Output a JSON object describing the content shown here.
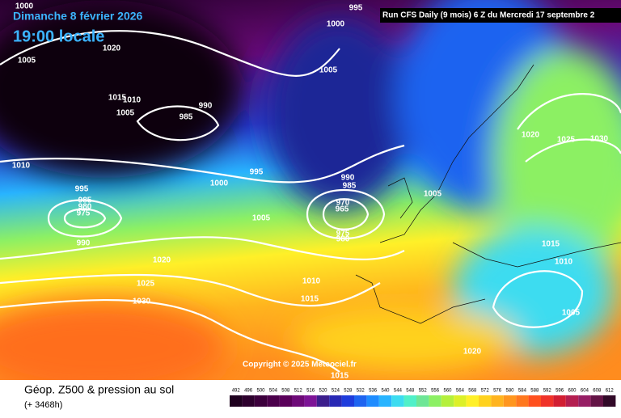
{
  "header": {
    "date": "Dimanche 8 février 2026",
    "time": "19:00 locale",
    "run": "Run CFS Daily (9 mois) 6 Z du Mercredi 17 septembre 2",
    "copyright": "Copyright © 2025 Meteociel.fr"
  },
  "footer": {
    "title": "Géop. Z500 & pression au sol",
    "lead": "(+ 3468h)"
  },
  "isobars": [
    1000,
    995,
    1000,
    1020,
    1005,
    1005,
    1015,
    1010,
    990,
    1005,
    985,
    1020,
    1025,
    1030,
    1010,
    995,
    1000,
    990,
    985,
    995,
    985,
    980,
    975,
    970,
    965,
    975,
    980,
    1005,
    1005,
    990,
    1015,
    1010,
    1020,
    1025,
    1010,
    1030,
    1015,
    1005,
    1020,
    1015
  ],
  "scale": {
    "labels": [
      492,
      496,
      500,
      504,
      508,
      512,
      516,
      520,
      524,
      528,
      532,
      536,
      540,
      544,
      548,
      552,
      556,
      560,
      564,
      568,
      572,
      576,
      580,
      584,
      588,
      592,
      596,
      600,
      604,
      608,
      612
    ],
    "colors": [
      "#1e001e",
      "#2d002d",
      "#3c003c",
      "#4b004b",
      "#5a005a",
      "#6e0a78",
      "#7d1496",
      "#3c1e8c",
      "#2828b4",
      "#1e3cdc",
      "#1e64f0",
      "#1e8cff",
      "#28b4ff",
      "#3cdcf0",
      "#50f0c8",
      "#6ee696",
      "#8cf064",
      "#b4f03c",
      "#dcf028",
      "#fff028",
      "#ffd21e",
      "#ffb41e",
      "#ff961e",
      "#ff781e",
      "#ff501e",
      "#f03228",
      "#d21e32",
      "#b41e50",
      "#961e64",
      "#641446",
      "#320a28"
    ]
  }
}
